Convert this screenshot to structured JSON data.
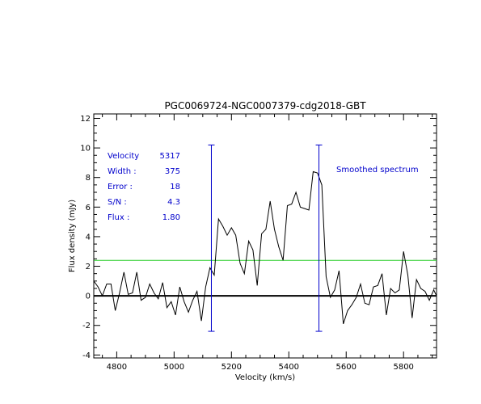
{
  "chart_data": {
    "type": "line",
    "title": "PGC0069724-NGC0007379-cdg2018-GBT",
    "xlabel": "Velocity (km/s)",
    "ylabel": "Flux density (mJy)",
    "xlim": [
      4720,
      5915
    ],
    "ylim": [
      -4.2,
      12.3
    ],
    "x_ticks": [
      4800,
      5000,
      5200,
      5400,
      5600,
      5800
    ],
    "y_ticks": [
      -4,
      -2,
      0,
      2,
      4,
      6,
      8,
      10,
      12
    ],
    "grid": false,
    "annotation": "Smoothed spectrum",
    "info": [
      {
        "label": "Velocity",
        "value": "5317"
      },
      {
        "label": "Width :",
        "value": "375"
      },
      {
        "label": "Error :",
        "value": "18"
      },
      {
        "label": "S/N :",
        "value": "4.3"
      },
      {
        "label": "Flux :",
        "value": "1.80"
      }
    ],
    "baseline": 0,
    "threshold_level": 2.4,
    "edge_markers": [
      {
        "x": 5130,
        "y_top": 10.2,
        "y_bottom": -2.4
      },
      {
        "x": 5505,
        "y_top": 10.2,
        "y_bottom": -2.4
      }
    ],
    "series": [
      {
        "x": [
          4720,
          4735,
          4750,
          4765,
          4780,
          4795,
          4810,
          4825,
          4840,
          4855,
          4870,
          4885,
          4900,
          4915,
          4930,
          4945,
          4960,
          4975,
          4990,
          5005,
          5020,
          5035,
          5050,
          5065,
          5080,
          5095,
          5110,
          5125,
          5140,
          5155,
          5170,
          5185,
          5200,
          5215,
          5230,
          5245,
          5260,
          5275,
          5290,
          5305,
          5320,
          5335,
          5350,
          5365,
          5380,
          5395,
          5410,
          5425,
          5440,
          5455,
          5470,
          5485,
          5500,
          5515,
          5530,
          5545,
          5560,
          5575,
          5590,
          5605,
          5620,
          5635,
          5650,
          5665,
          5680,
          5695,
          5710,
          5725,
          5740,
          5755,
          5770,
          5785,
          5800,
          5815,
          5830,
          5845,
          5860,
          5875,
          5890,
          5905,
          5915
        ],
        "y": [
          1.0,
          0.6,
          0.0,
          0.8,
          0.8,
          -1.0,
          0.2,
          1.6,
          0.1,
          0.2,
          1.6,
          -0.3,
          -0.1,
          0.8,
          0.2,
          -0.2,
          0.9,
          -0.8,
          -0.4,
          -1.3,
          0.6,
          -0.4,
          -1.1,
          -0.3,
          0.3,
          -1.7,
          0.6,
          1.9,
          1.4,
          5.2,
          4.7,
          4.1,
          4.6,
          4.1,
          2.2,
          1.5,
          3.7,
          3.1,
          0.7,
          4.2,
          4.5,
          6.4,
          4.5,
          3.3,
          2.4,
          6.1,
          6.2,
          7.0,
          6.0,
          5.9,
          5.8,
          8.4,
          8.3,
          7.5,
          1.3,
          -0.1,
          0.4,
          1.7,
          -1.9,
          -1.0,
          -0.6,
          -0.1,
          0.8,
          -0.5,
          -0.6,
          0.6,
          0.7,
          1.5,
          -1.3,
          0.5,
          0.2,
          0.4,
          3.0,
          1.4,
          -1.5,
          1.1,
          0.5,
          0.3,
          -0.3,
          0.4,
          0.0
        ]
      }
    ]
  }
}
